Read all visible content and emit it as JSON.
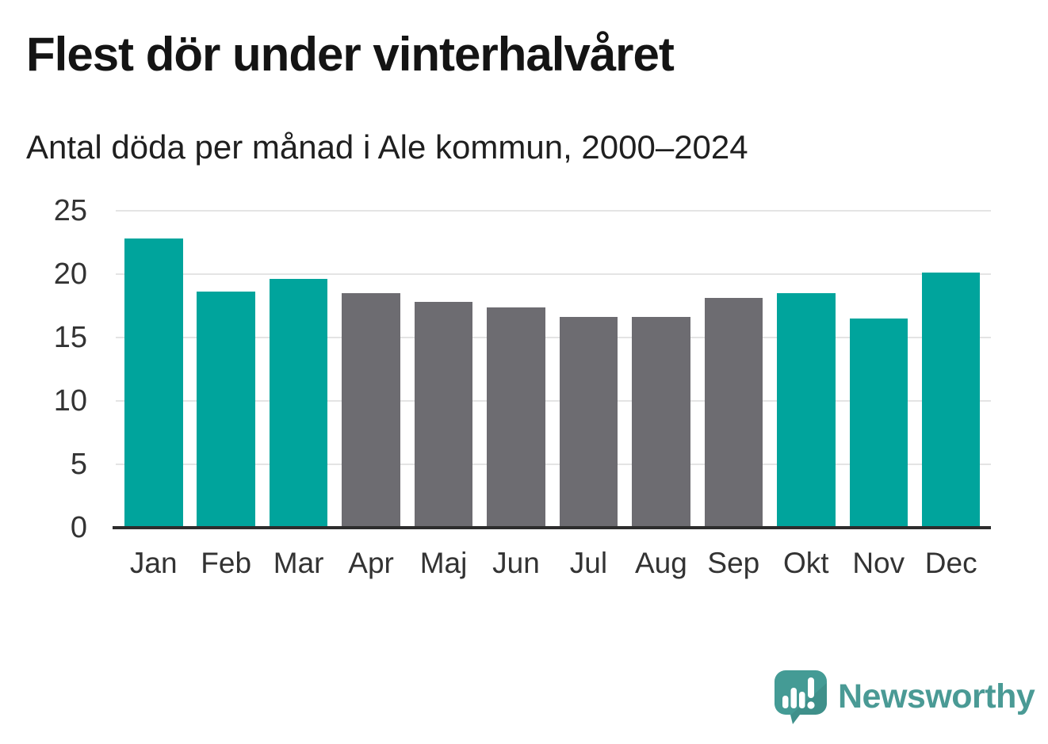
{
  "header": {
    "title": "Flest dör under vinterhalvåret",
    "subtitle": "Antal döda per månad i Ale kommun, 2000–2024"
  },
  "chart_data": {
    "type": "bar",
    "title": "Flest dör under vinterhalvåret",
    "subtitle": "Antal döda per månad i Ale kommun, 2000–2024",
    "categories": [
      "Jan",
      "Feb",
      "Mar",
      "Apr",
      "Maj",
      "Jun",
      "Jul",
      "Aug",
      "Sep",
      "Okt",
      "Nov",
      "Dec"
    ],
    "values": [
      22.8,
      18.6,
      19.6,
      18.5,
      17.8,
      17.4,
      16.6,
      16.6,
      18.1,
      18.5,
      16.5,
      20.1
    ],
    "highlighted": [
      true,
      true,
      true,
      false,
      false,
      false,
      false,
      false,
      false,
      true,
      true,
      true
    ],
    "colors": {
      "highlight": "#00a49c",
      "muted": "#6d6c71"
    },
    "xlabel": "",
    "ylabel": "",
    "ylim": [
      0,
      25
    ],
    "yticks": [
      0,
      5,
      10,
      15,
      20,
      25
    ],
    "grid": true,
    "legend": false
  },
  "branding": {
    "name": "Newsworthy",
    "icon": "newsworthy-speech-bubble-chart-icon",
    "icon_color": "#449b95",
    "text_color": "#4a9a95"
  }
}
